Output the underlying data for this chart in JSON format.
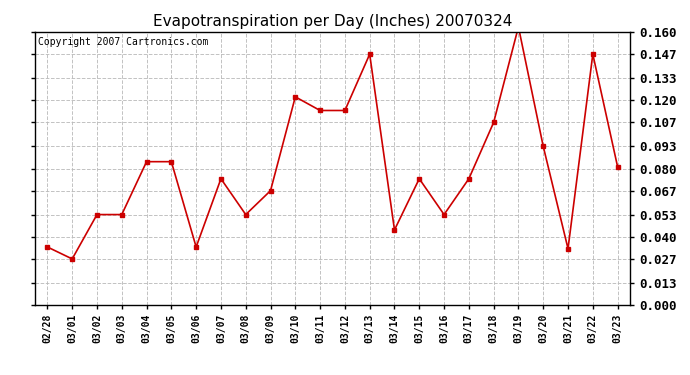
{
  "title": "Evapotranspiration per Day (Inches) 20070324",
  "copyright": "Copyright 2007 Cartronics.com",
  "dates": [
    "02/28",
    "03/01",
    "03/02",
    "03/03",
    "03/04",
    "03/05",
    "03/06",
    "03/07",
    "03/08",
    "03/09",
    "03/10",
    "03/11",
    "03/12",
    "03/13",
    "03/14",
    "03/15",
    "03/16",
    "03/17",
    "03/18",
    "03/19",
    "03/20",
    "03/21",
    "03/22",
    "03/23"
  ],
  "values": [
    0.034,
    0.027,
    0.053,
    0.053,
    0.084,
    0.084,
    0.034,
    0.074,
    0.053,
    0.067,
    0.122,
    0.114,
    0.114,
    0.147,
    0.044,
    0.074,
    0.053,
    0.074,
    0.107,
    0.163,
    0.093,
    0.033,
    0.147,
    0.081
  ],
  "ylim": [
    0.0,
    0.16
  ],
  "yticks": [
    0.0,
    0.013,
    0.027,
    0.04,
    0.053,
    0.067,
    0.08,
    0.093,
    0.107,
    0.12,
    0.133,
    0.147,
    0.16
  ],
  "line_color": "#cc0000",
  "marker": "s",
  "marker_size": 3,
  "bg_color": "#ffffff",
  "grid_color": "#bbbbbb",
  "title_fontsize": 11,
  "copyright_fontsize": 7,
  "ytick_fontsize": 9,
  "xtick_fontsize": 7
}
